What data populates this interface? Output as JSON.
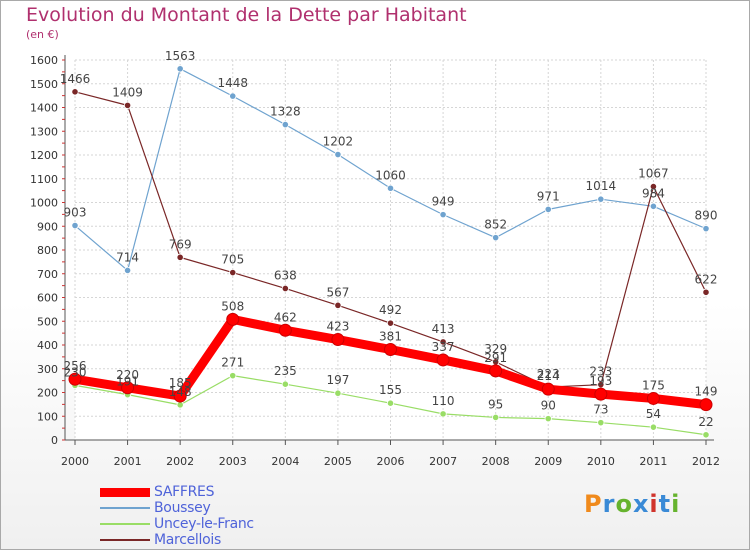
{
  "title": "Evolution du Montant de la Dette par Habitant",
  "subtitle": "(en €)",
  "logo": {
    "text": "Proxiti",
    "colors": [
      "#f08a1c",
      "#3a8ad6",
      "#66b32e",
      "#3a8ad6",
      "#d0342c",
      "#3a8ad6",
      "#66b32e"
    ]
  },
  "chart_data": {
    "type": "line",
    "x": [
      "2000",
      "2001",
      "2002",
      "2003",
      "2004",
      "2005",
      "2006",
      "2007",
      "2008",
      "2009",
      "2010",
      "2011",
      "2012"
    ],
    "ylim": [
      0,
      1600
    ],
    "yticks": [
      0,
      100,
      200,
      300,
      400,
      500,
      600,
      700,
      800,
      900,
      1000,
      1100,
      1200,
      1300,
      1400,
      1500,
      1600
    ],
    "grid": true,
    "legend_position": "bottom",
    "series": [
      {
        "name": "SAFFRES",
        "color": "#ff0000",
        "values": [
          256,
          220,
          185,
          508,
          462,
          423,
          381,
          337,
          291,
          214,
          193,
          175,
          149
        ]
      },
      {
        "name": "Boussey",
        "color": "#6fa3cf",
        "values": [
          903,
          714,
          1563,
          1448,
          1328,
          1202,
          1060,
          949,
          852,
          971,
          1014,
          984,
          890
        ]
      },
      {
        "name": "Uncey-le-Franc",
        "color": "#99dd66",
        "values": [
          230,
          191,
          148,
          271,
          235,
          197,
          155,
          110,
          95,
          90,
          73,
          54,
          22
        ]
      },
      {
        "name": "Marcellois",
        "color": "#7a2727",
        "values": [
          1466,
          1409,
          769,
          705,
          638,
          567,
          492,
          413,
          329,
          223,
          233,
          1067,
          622
        ]
      }
    ]
  }
}
